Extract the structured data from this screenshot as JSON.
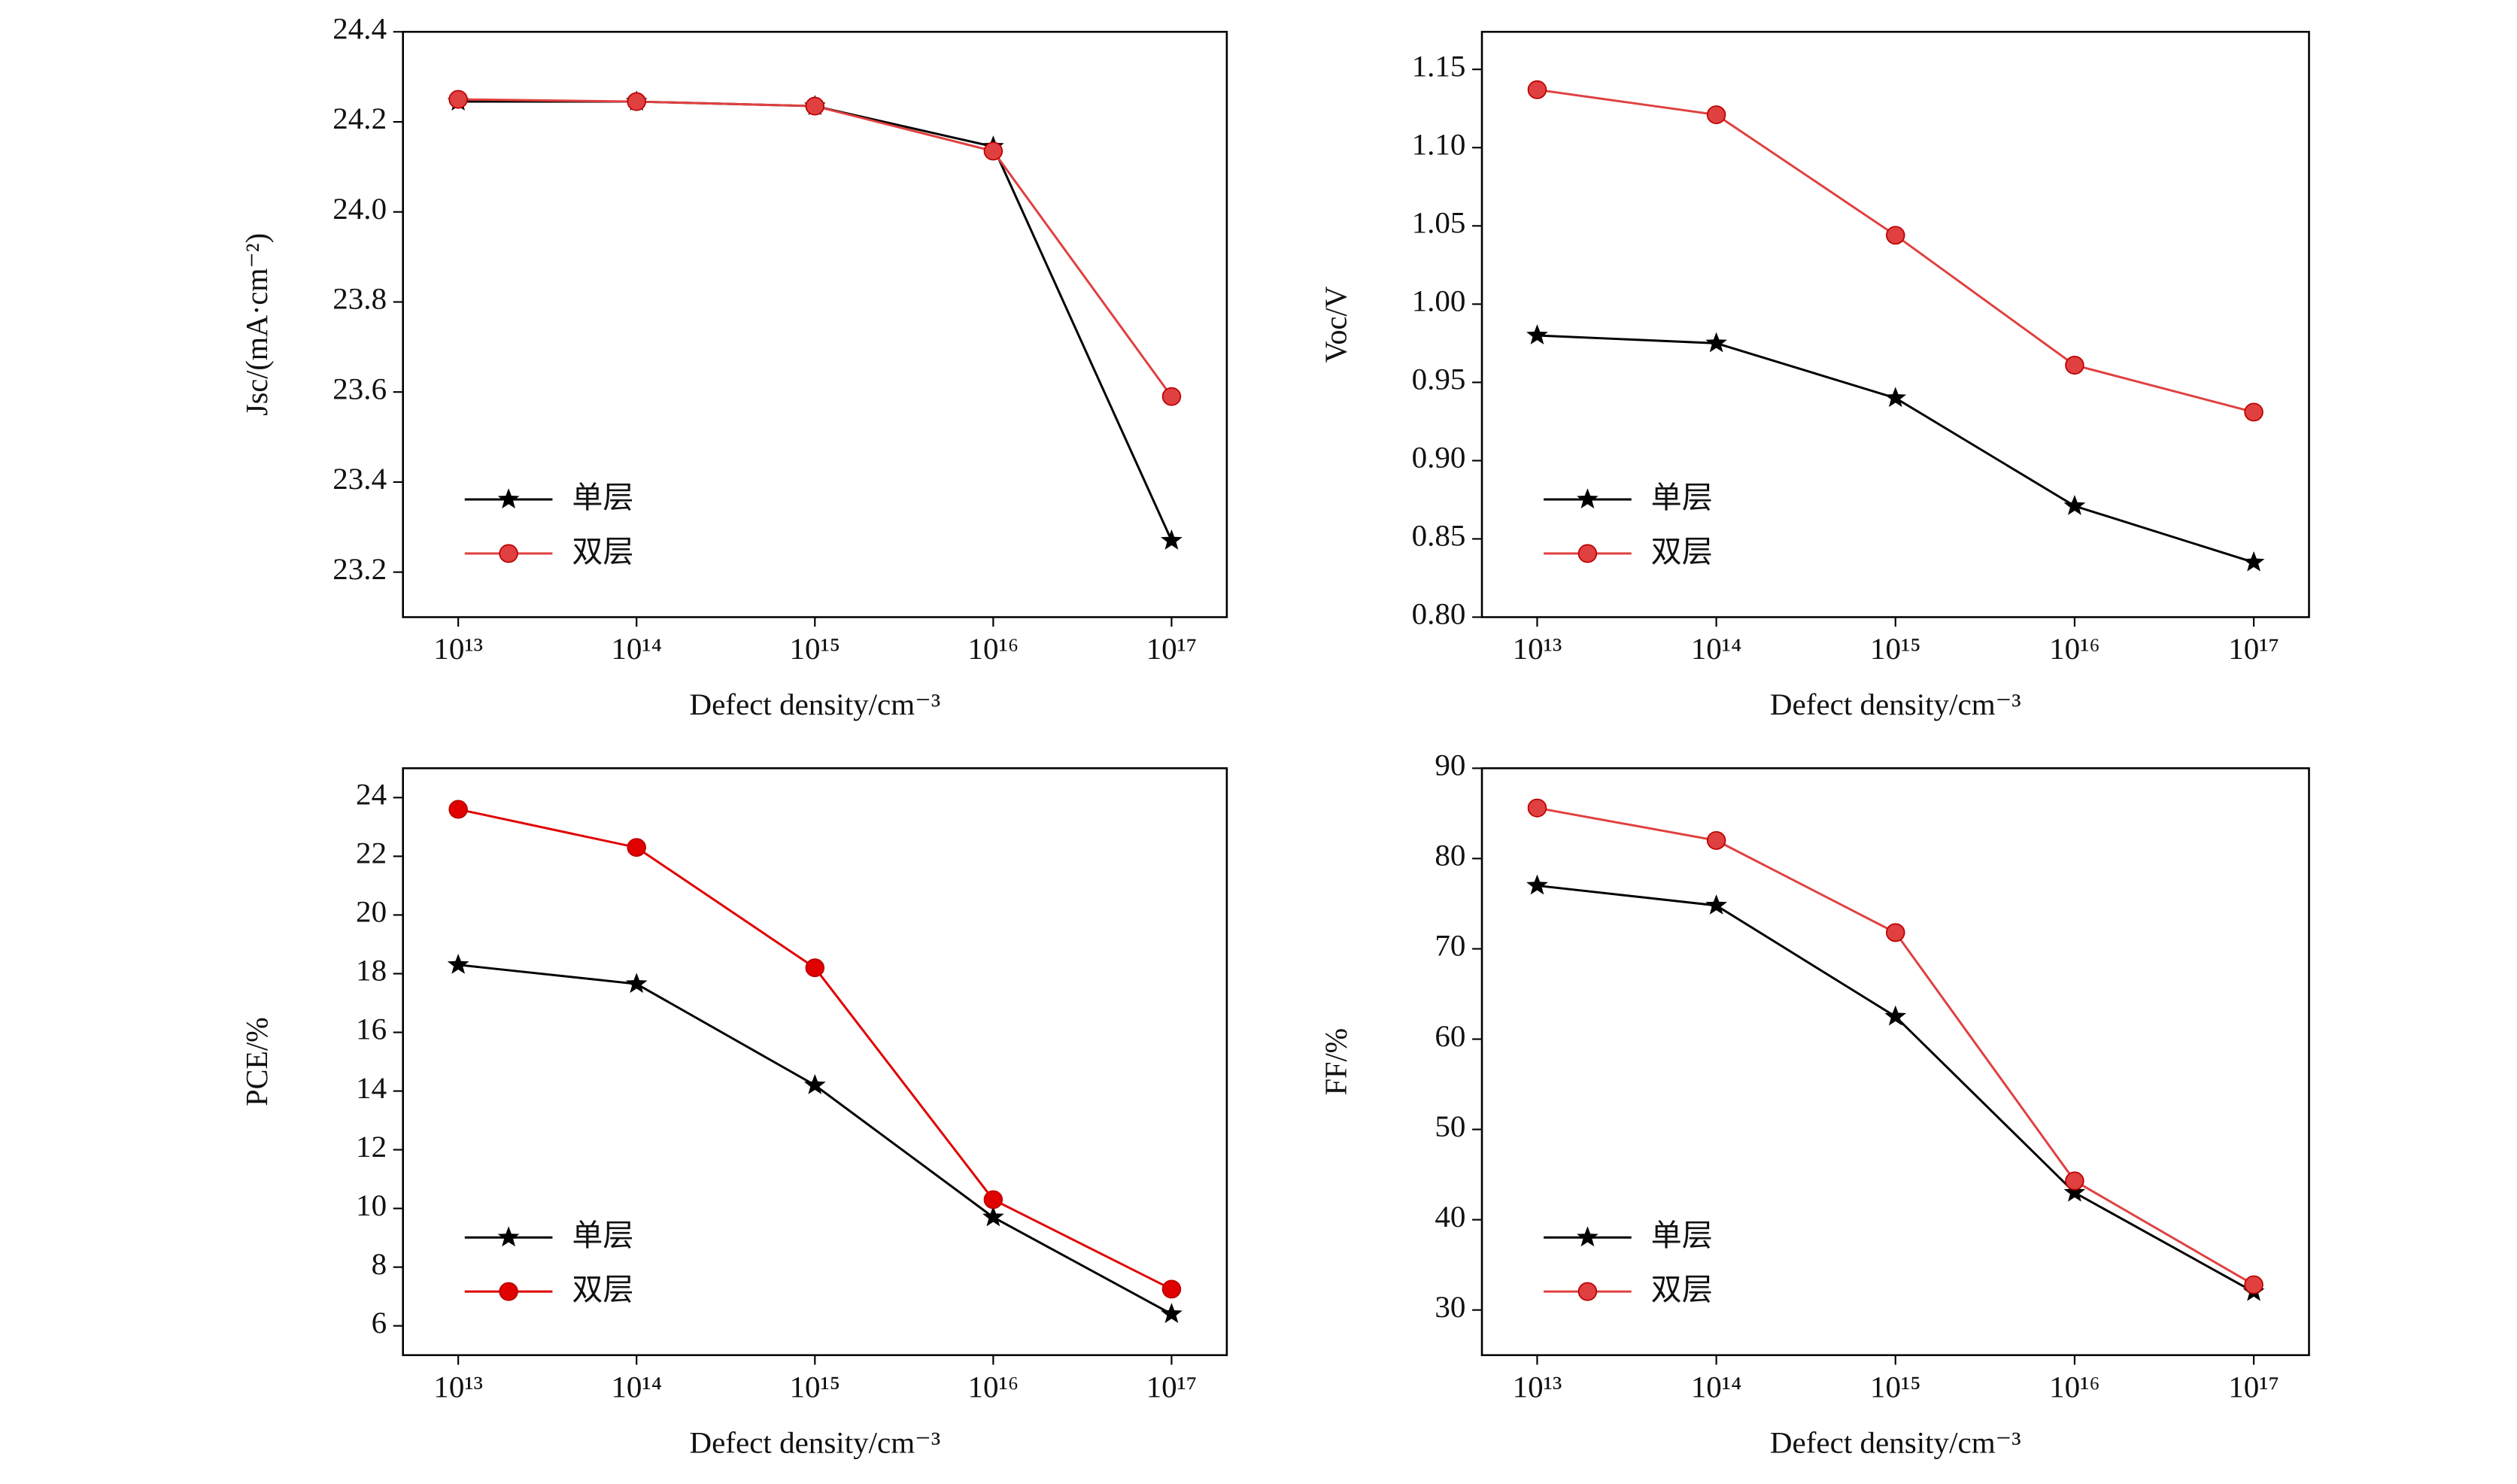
{
  "chart_data": [
    {
      "type": "line",
      "y_label": "Jsc/(mA·cm⁻²)",
      "x_label": "Defect density/cm⁻³",
      "categories": [
        "10¹³",
        "10¹⁴",
        "10¹⁵",
        "10¹⁶",
        "10¹⁷"
      ],
      "ylim": [
        23.1,
        24.4
      ],
      "yticks": [
        23.2,
        23.4,
        23.6,
        23.8,
        {
          "value": 24,
          "label": "24.0"
        },
        24.2,
        24.4
      ],
      "series": [
        {
          "name": "单层",
          "color": "#000000",
          "marker": "star",
          "values": [
            24.245,
            24.245,
            24.235,
            24.145,
            23.27
          ]
        },
        {
          "name": "双层",
          "color": "#e04040",
          "marker": "circle",
          "values": [
            24.25,
            24.245,
            24.235,
            24.135,
            23.59
          ]
        }
      ]
    },
    {
      "type": "line",
      "y_label": "Voc/V",
      "x_label": "Defect density/cm⁻³",
      "categories": [
        "10¹³",
        "10¹⁴",
        "10¹⁵",
        "10¹⁶",
        "10¹⁷"
      ],
      "ylim": [
        0.8,
        1.174
      ],
      "yticks": [
        {
          "value": 0.8,
          "label": "0.80"
        },
        0.85,
        {
          "value": 0.9,
          "label": "0.90"
        },
        0.95,
        {
          "value": 1,
          "label": "1.00"
        },
        1.05,
        {
          "value": 1.1,
          "label": "1.10"
        },
        1.15
      ],
      "series": [
        {
          "name": "单层",
          "color": "#000000",
          "marker": "star",
          "values": [
            0.98,
            0.975,
            0.94,
            0.871,
            0.835
          ]
        },
        {
          "name": "双层",
          "color": "#e04040",
          "marker": "circle",
          "values": [
            1.137,
            1.121,
            1.044,
            0.961,
            0.931
          ]
        }
      ]
    },
    {
      "type": "line",
      "y_label": "PCE/%",
      "x_label": "Defect density/cm⁻³",
      "categories": [
        "10¹³",
        "10¹⁴",
        "10¹⁵",
        "10¹⁶",
        "10¹⁷"
      ],
      "ylim": [
        5,
        25
      ],
      "yticks": [
        6,
        8,
        10,
        12,
        14,
        16,
        18,
        20,
        22,
        24
      ],
      "series": [
        {
          "name": "单层",
          "color": "#000000",
          "marker": "star",
          "values": [
            18.3,
            17.65,
            14.2,
            9.7,
            6.4
          ]
        },
        {
          "name": "双层",
          "color": "#e00000",
          "marker": "circle",
          "values": [
            23.6,
            22.3,
            18.2,
            10.3,
            7.25
          ]
        }
      ]
    },
    {
      "type": "line",
      "y_label": "FF/%",
      "x_label": "Defect density/cm⁻³",
      "categories": [
        "10¹³",
        "10¹⁴",
        "10¹⁵",
        "10¹⁶",
        "10¹⁷"
      ],
      "ylim": [
        25,
        90
      ],
      "yticks": [
        30,
        40,
        50,
        60,
        70,
        80,
        90
      ],
      "series": [
        {
          "name": "单层",
          "color": "#000000",
          "marker": "star",
          "values": [
            77,
            74.8,
            62.5,
            43,
            32
          ]
        },
        {
          "name": "双层",
          "color": "#e04040",
          "marker": "circle",
          "values": [
            85.6,
            82,
            71.8,
            44.3,
            32.8
          ]
        }
      ]
    }
  ]
}
